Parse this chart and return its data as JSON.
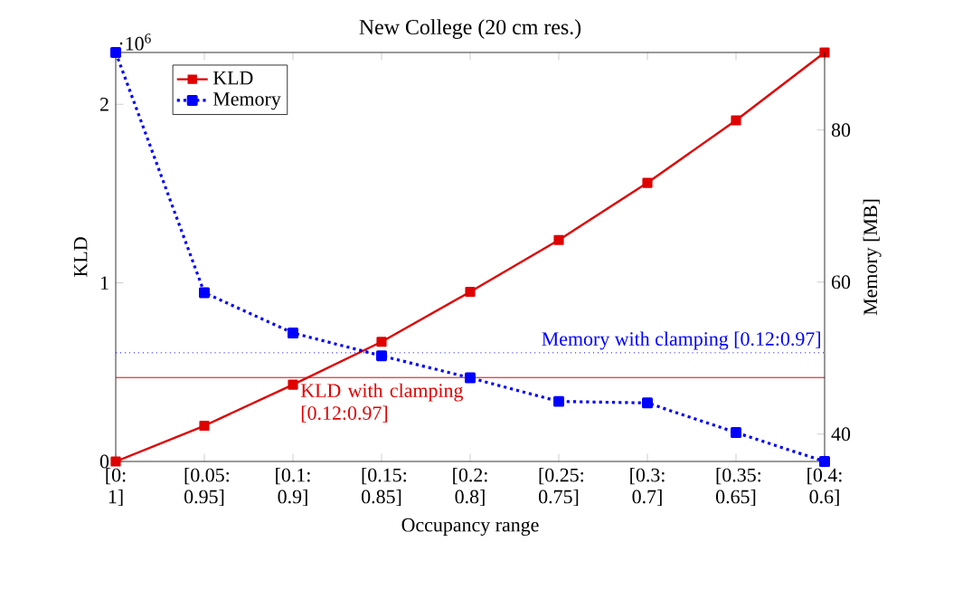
{
  "chart_data": {
    "type": "line",
    "title": "New College (20 cm res.)",
    "xlabel": "Occupancy range",
    "ylabel": "KLD",
    "y2label": "Memory [MB]",
    "categories": [
      "[0: 1]",
      "[0.05: 0.95]",
      "[0.1: 0.9]",
      "[0.15: 0.85]",
      "[0.2: 0.8]",
      "[0.25: 0.75]",
      "[0.3: 0.7]",
      "[0.35: 0.65]",
      "[0.4: 0.6]"
    ],
    "series": [
      {
        "name": "KLD",
        "color": "#e00000",
        "line_style": "solid",
        "values": [
          0,
          0.2,
          0.43,
          0.67,
          0.95,
          1.24,
          1.56,
          1.91,
          2.29
        ]
      },
      {
        "name": "Memory",
        "color": "#0000ff",
        "line_style": "dotted",
        "axis": "y2",
        "values": [
          90.2,
          58.6,
          53.3,
          50.3,
          47.4,
          44.3,
          44.1,
          40.2,
          36.4
        ]
      }
    ],
    "marker": "square",
    "ylim": [
      0,
      2.29
    ],
    "yticks": [
      0,
      1,
      2
    ],
    "y2lim": [
      36.4,
      90.2
    ],
    "y2ticks": [
      40,
      60,
      80
    ],
    "ref_lines": [
      {
        "axis": "y",
        "value": 0.47,
        "color": "#e00000",
        "line_style": "solid"
      },
      {
        "axis": "y2",
        "value": 50.7,
        "color": "#0000ff",
        "line_style": "dotted"
      }
    ],
    "annotations": [
      "·10$^{6}$",
      "KLD with clamping [0.12:0.97]",
      "Memory with clamping [0.12:0.97]"
    ],
    "legend": "top left",
    "grid": false
  }
}
